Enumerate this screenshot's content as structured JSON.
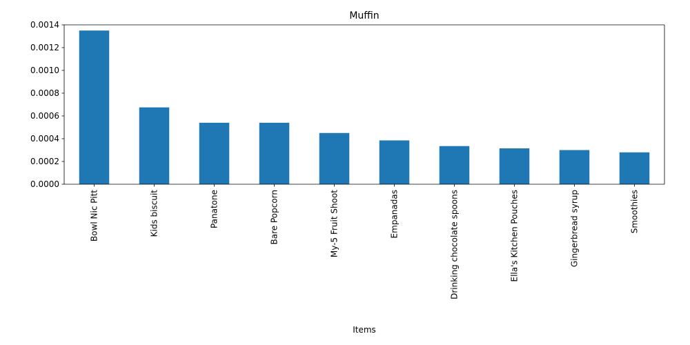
{
  "chart_data": {
    "type": "bar",
    "title": "Muffin",
    "xlabel": "Items",
    "ylabel": "",
    "categories": [
      "Bowl Nic Pitt",
      "Kids biscuit",
      "Panatone",
      "Bare Popcorn",
      "My-5 Fruit Shoot",
      "Empanadas",
      "Drinking chocolate spoons",
      "Ella's Kitchen Pouches",
      "Gingerbread syrup",
      "Smoothies"
    ],
    "values": [
      0.00135,
      0.000675,
      0.00054,
      0.00054,
      0.00045,
      0.000385,
      0.000335,
      0.000315,
      0.0003,
      0.00028
    ],
    "ylim": [
      0,
      0.0014
    ],
    "yticks": [
      "0.0000",
      "0.0002",
      "0.0004",
      "0.0006",
      "0.0008",
      "0.0010",
      "0.0012",
      "0.0014"
    ],
    "ytick_values": [
      0,
      0.0002,
      0.0004,
      0.0006,
      0.0008,
      0.001,
      0.0012,
      0.0014
    ],
    "grid": false,
    "legend": "none",
    "bar_color": "#1f77b4"
  }
}
